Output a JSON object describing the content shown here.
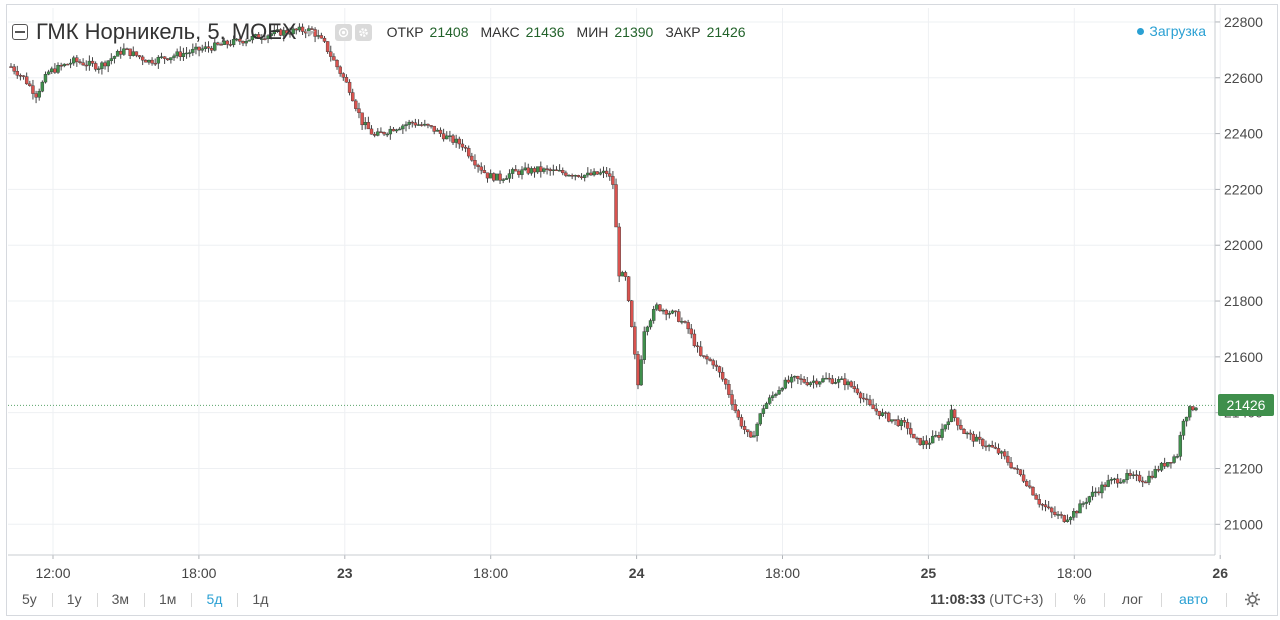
{
  "legend": {
    "symbol": "ГМК Норникель, 5, MOEX",
    "open_label": "ОТКР",
    "open": "21408",
    "high_label": "МАКС",
    "high": "21436",
    "low_label": "МИН",
    "low": "21390",
    "close_label": "ЗАКР",
    "close": "21426"
  },
  "status": {
    "loading": "Загрузка"
  },
  "last_price": "21426",
  "bottom_bar": {
    "ranges": [
      {
        "label": "5y",
        "active": false
      },
      {
        "label": "1y",
        "active": false
      },
      {
        "label": "3м",
        "active": false
      },
      {
        "label": "1м",
        "active": false
      },
      {
        "label": "5д",
        "active": true
      },
      {
        "label": "1д",
        "active": false
      }
    ],
    "time": "11:08:33",
    "timezone": "(UTC+3)",
    "percent": "%",
    "log": "лог",
    "auto": "авто"
  },
  "colors": {
    "up": "#3f8f4c",
    "down": "#d9534f",
    "accent": "#2aa0d3",
    "grid": "#eef0f3"
  },
  "icons": [
    "collapse-icon",
    "chevron-down-icon",
    "eye-icon",
    "gear-icon"
  ],
  "chart_data": {
    "type": "candlestick",
    "timeframe": "5",
    "exchange": "MOEX",
    "x_tick_labels": [
      "12:00",
      "18:00",
      "23",
      "18:00",
      "24",
      "18:00",
      "25",
      "18:00",
      "26"
    ],
    "y_ticks": [
      21000,
      21200,
      21400,
      21600,
      21800,
      22000,
      22200,
      22400,
      22600,
      22800
    ],
    "ylim": [
      20890,
      22850
    ],
    "price_line": 21426,
    "series_path": [
      [
        0,
        22640
      ],
      [
        2,
        22600
      ],
      [
        4,
        22540
      ],
      [
        6,
        22620
      ],
      [
        10,
        22660
      ],
      [
        14,
        22640
      ],
      [
        18,
        22700
      ],
      [
        22,
        22660
      ],
      [
        26,
        22680
      ],
      [
        30,
        22700
      ],
      [
        34,
        22720
      ],
      [
        38,
        22740
      ],
      [
        42,
        22760
      ],
      [
        46,
        22770
      ],
      [
        48,
        22770
      ],
      [
        50,
        22720
      ],
      [
        52,
        22640
      ],
      [
        54,
        22560
      ],
      [
        56,
        22440
      ],
      [
        58,
        22390
      ],
      [
        61,
        22420
      ],
      [
        64,
        22440
      ],
      [
        67,
        22420
      ],
      [
        70,
        22380
      ],
      [
        72,
        22360
      ],
      [
        74,
        22300
      ],
      [
        76,
        22250
      ],
      [
        78,
        22240
      ],
      [
        80,
        22260
      ],
      [
        84,
        22270
      ],
      [
        88,
        22260
      ],
      [
        92,
        22250
      ],
      [
        95,
        22260
      ],
      [
        96,
        22220
      ],
      [
        97,
        21900
      ],
      [
        98,
        21880
      ],
      [
        99,
        21700
      ],
      [
        100,
        21500
      ],
      [
        101,
        21700
      ],
      [
        103,
        21780
      ],
      [
        106,
        21750
      ],
      [
        108,
        21700
      ],
      [
        110,
        21600
      ],
      [
        112,
        21580
      ],
      [
        114,
        21500
      ],
      [
        116,
        21380
      ],
      [
        118,
        21300
      ],
      [
        120,
        21420
      ],
      [
        123,
        21500
      ],
      [
        125,
        21520
      ],
      [
        127,
        21510
      ],
      [
        130,
        21520
      ],
      [
        133,
        21510
      ],
      [
        135,
        21480
      ],
      [
        137,
        21420
      ],
      [
        140,
        21380
      ],
      [
        143,
        21350
      ],
      [
        144,
        21300
      ],
      [
        146,
        21290
      ],
      [
        148,
        21320
      ],
      [
        150,
        21400
      ],
      [
        152,
        21330
      ],
      [
        154,
        21300
      ],
      [
        156,
        21280
      ],
      [
        158,
        21250
      ],
      [
        160,
        21200
      ],
      [
        162,
        21150
      ],
      [
        164,
        21080
      ],
      [
        166,
        21040
      ],
      [
        168,
        21020
      ],
      [
        170,
        21050
      ],
      [
        172,
        21100
      ],
      [
        175,
        21150
      ],
      [
        178,
        21170
      ],
      [
        181,
        21160
      ],
      [
        183,
        21200
      ],
      [
        186,
        21250
      ],
      [
        187,
        21380
      ],
      [
        188,
        21410
      ],
      [
        189,
        21426
      ]
    ]
  }
}
